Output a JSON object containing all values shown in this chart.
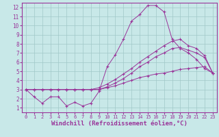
{
  "background_color": "#c8e8e8",
  "grid_color": "#a0c8c8",
  "line_color": "#993399",
  "marker": "+",
  "xlabel": "Windchill (Refroidissement éolien,°C)",
  "xlim": [
    -0.5,
    23.5
  ],
  "ylim": [
    0.5,
    12.5
  ],
  "xticks": [
    0,
    1,
    2,
    3,
    4,
    5,
    6,
    7,
    8,
    9,
    10,
    11,
    12,
    13,
    14,
    15,
    16,
    17,
    18,
    19,
    20,
    21,
    22,
    23
  ],
  "yticks": [
    1,
    2,
    3,
    4,
    5,
    6,
    7,
    8,
    9,
    10,
    11,
    12
  ],
  "series": [
    [
      3.0,
      2.2,
      1.5,
      2.2,
      2.2,
      1.2,
      1.6,
      1.2,
      1.5,
      2.8,
      5.5,
      6.8,
      8.5,
      10.5,
      11.2,
      12.2,
      12.2,
      11.5,
      8.5,
      7.5,
      7.0,
      6.3,
      5.3,
      4.8
    ],
    [
      3.0,
      3.0,
      3.0,
      3.0,
      3.0,
      3.0,
      3.0,
      3.0,
      3.0,
      3.0,
      3.2,
      3.4,
      3.7,
      4.0,
      4.3,
      4.5,
      4.7,
      4.8,
      5.0,
      5.2,
      5.3,
      5.4,
      5.5,
      4.8
    ],
    [
      3.0,
      3.0,
      3.0,
      3.0,
      3.0,
      3.0,
      3.0,
      3.0,
      3.0,
      3.2,
      3.6,
      4.1,
      4.7,
      5.3,
      6.0,
      6.6,
      7.2,
      7.8,
      8.3,
      8.5,
      7.8,
      7.5,
      6.7,
      4.8
    ],
    [
      3.0,
      3.0,
      3.0,
      3.0,
      3.0,
      3.0,
      3.0,
      3.0,
      3.0,
      3.0,
      3.3,
      3.7,
      4.2,
      4.8,
      5.5,
      6.0,
      6.6,
      7.0,
      7.5,
      7.6,
      7.3,
      7.0,
      6.5,
      4.8
    ]
  ]
}
